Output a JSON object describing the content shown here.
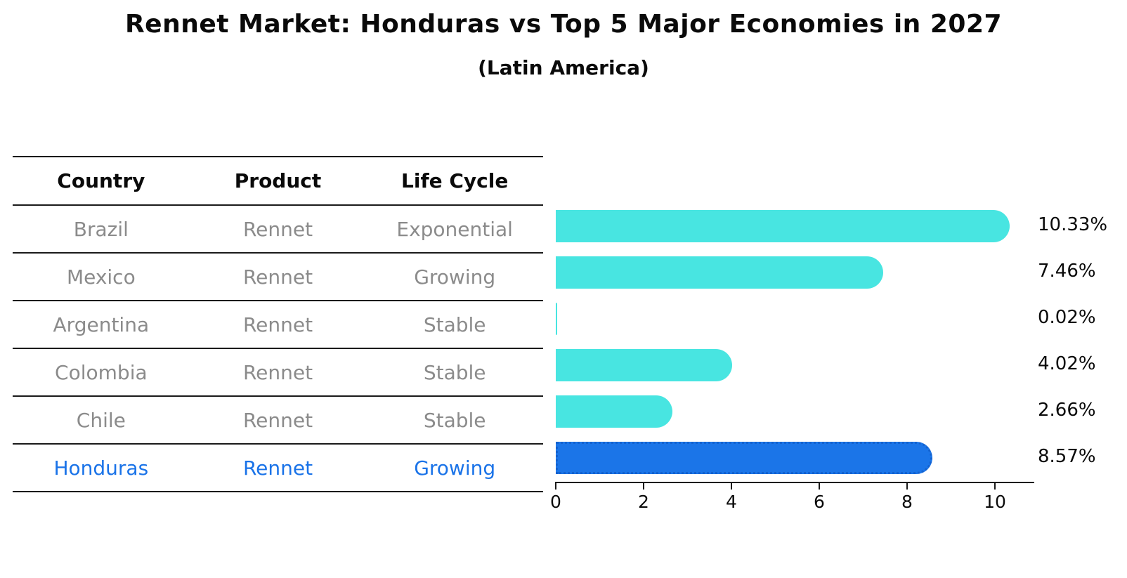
{
  "title": "Rennet Market: Honduras vs Top 5 Major Economies in 2027",
  "subtitle": "(Latin America)",
  "table": {
    "headers": [
      "Country",
      "Product",
      "Life Cycle"
    ],
    "rows": [
      {
        "country": "Brazil",
        "product": "Rennet",
        "life_cycle": "Exponential",
        "highlighted": false
      },
      {
        "country": "Mexico",
        "product": "Rennet",
        "life_cycle": "Growing",
        "highlighted": false
      },
      {
        "country": "Argentina",
        "product": "Rennet",
        "life_cycle": "Stable",
        "highlighted": false
      },
      {
        "country": "Colombia",
        "product": "Rennet",
        "life_cycle": "Stable",
        "highlighted": false
      },
      {
        "country": "Chile",
        "product": "Rennet",
        "life_cycle": "Stable",
        "highlighted": false
      },
      {
        "country": "Honduras",
        "product": "Rennet",
        "life_cycle": "Growing",
        "highlighted": true
      }
    ]
  },
  "chart_data": {
    "type": "bar",
    "orientation": "horizontal",
    "title": "Rennet Market: Honduras vs Top 5 Major Economies in 2027",
    "subtitle": "(Latin America)",
    "categories": [
      "Brazil",
      "Mexico",
      "Argentina",
      "Colombia",
      "Chile",
      "Honduras"
    ],
    "values": [
      10.33,
      7.46,
      0.02,
      4.02,
      2.66,
      8.57
    ],
    "value_labels": [
      "10.33%",
      "7.46%",
      "0.02%",
      "4.02%",
      "2.66%",
      "8.57%"
    ],
    "xlabel": "",
    "ylabel": "",
    "xlim": [
      0,
      10.9
    ],
    "x_ticks": [
      0,
      2,
      4,
      6,
      8,
      10
    ],
    "grid": false,
    "legend": "none",
    "colors": {
      "default_bar": "#48e5e1",
      "highlight_bar": "#1b75e8",
      "highlight_border": "#1462cf",
      "highlight_text": "#1a73e8",
      "row_text": "#8b8b8b",
      "header_text": "#0a0a0a",
      "axis": "#1a1a1a"
    }
  }
}
